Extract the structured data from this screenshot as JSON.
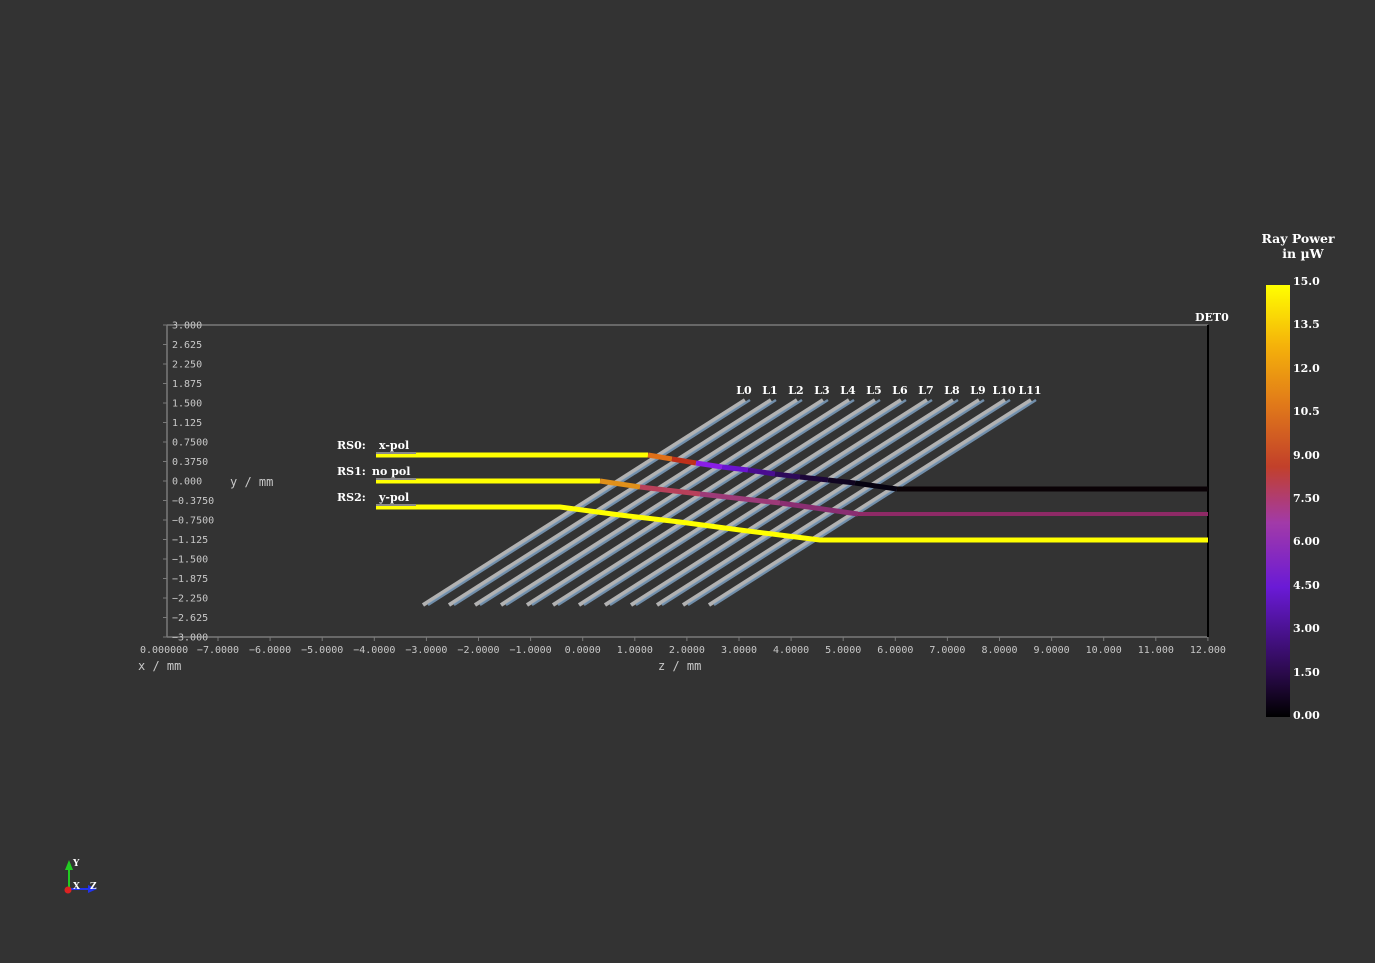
{
  "axes": {
    "y_label": "y / mm",
    "z_label": "z / mm",
    "x_label": "x / mm",
    "x_overlap_text": "0.000000",
    "y_ticks": [
      "3.000",
      "2.625",
      "2.250",
      "1.875",
      "1.500",
      "1.125",
      "0.7500",
      "0.3750",
      "0.000",
      "−0.3750",
      "−0.7500",
      "−1.125",
      "−1.500",
      "−1.875",
      "−2.250",
      "−2.625",
      "−3.000"
    ],
    "z_ticks": [
      "−7.0000",
      "−6.0000",
      "−5.0000",
      "−4.0000",
      "−3.0000",
      "−2.0000",
      "−1.0000",
      "0.0000",
      "1.0000",
      "2.0000",
      "3.0000",
      "4.0000",
      "5.0000",
      "6.0000",
      "7.0000",
      "8.0000",
      "9.0000",
      "10.000",
      "11.000",
      "12.000"
    ]
  },
  "lenses": [
    "L0",
    "L1",
    "L2",
    "L3",
    "L4",
    "L5",
    "L6",
    "L7",
    "L8",
    "L9",
    "L10",
    "L11"
  ],
  "detector": "DET0",
  "sources": [
    {
      "name": "RS0:",
      "label": "x-pol"
    },
    {
      "name": "RS1:",
      "label": "no pol"
    },
    {
      "name": "RS2:",
      "label": "y-pol"
    }
  ],
  "colorbar": {
    "title_line1": "Ray Power",
    "title_line2": "in µW",
    "ticks": [
      "15.0",
      "13.5",
      "12.0",
      "10.5",
      "9.00",
      "7.50",
      "6.00",
      "4.50",
      "3.00",
      "1.50",
      "0.00"
    ],
    "min": 0,
    "max": 15
  },
  "orientation": {
    "x": "X",
    "y": "Y",
    "z": "Z"
  },
  "colors": {
    "background": "#333333",
    "ray_full": "#ffff00",
    "lens": "#a8c0d0",
    "detector": "#000000"
  }
}
